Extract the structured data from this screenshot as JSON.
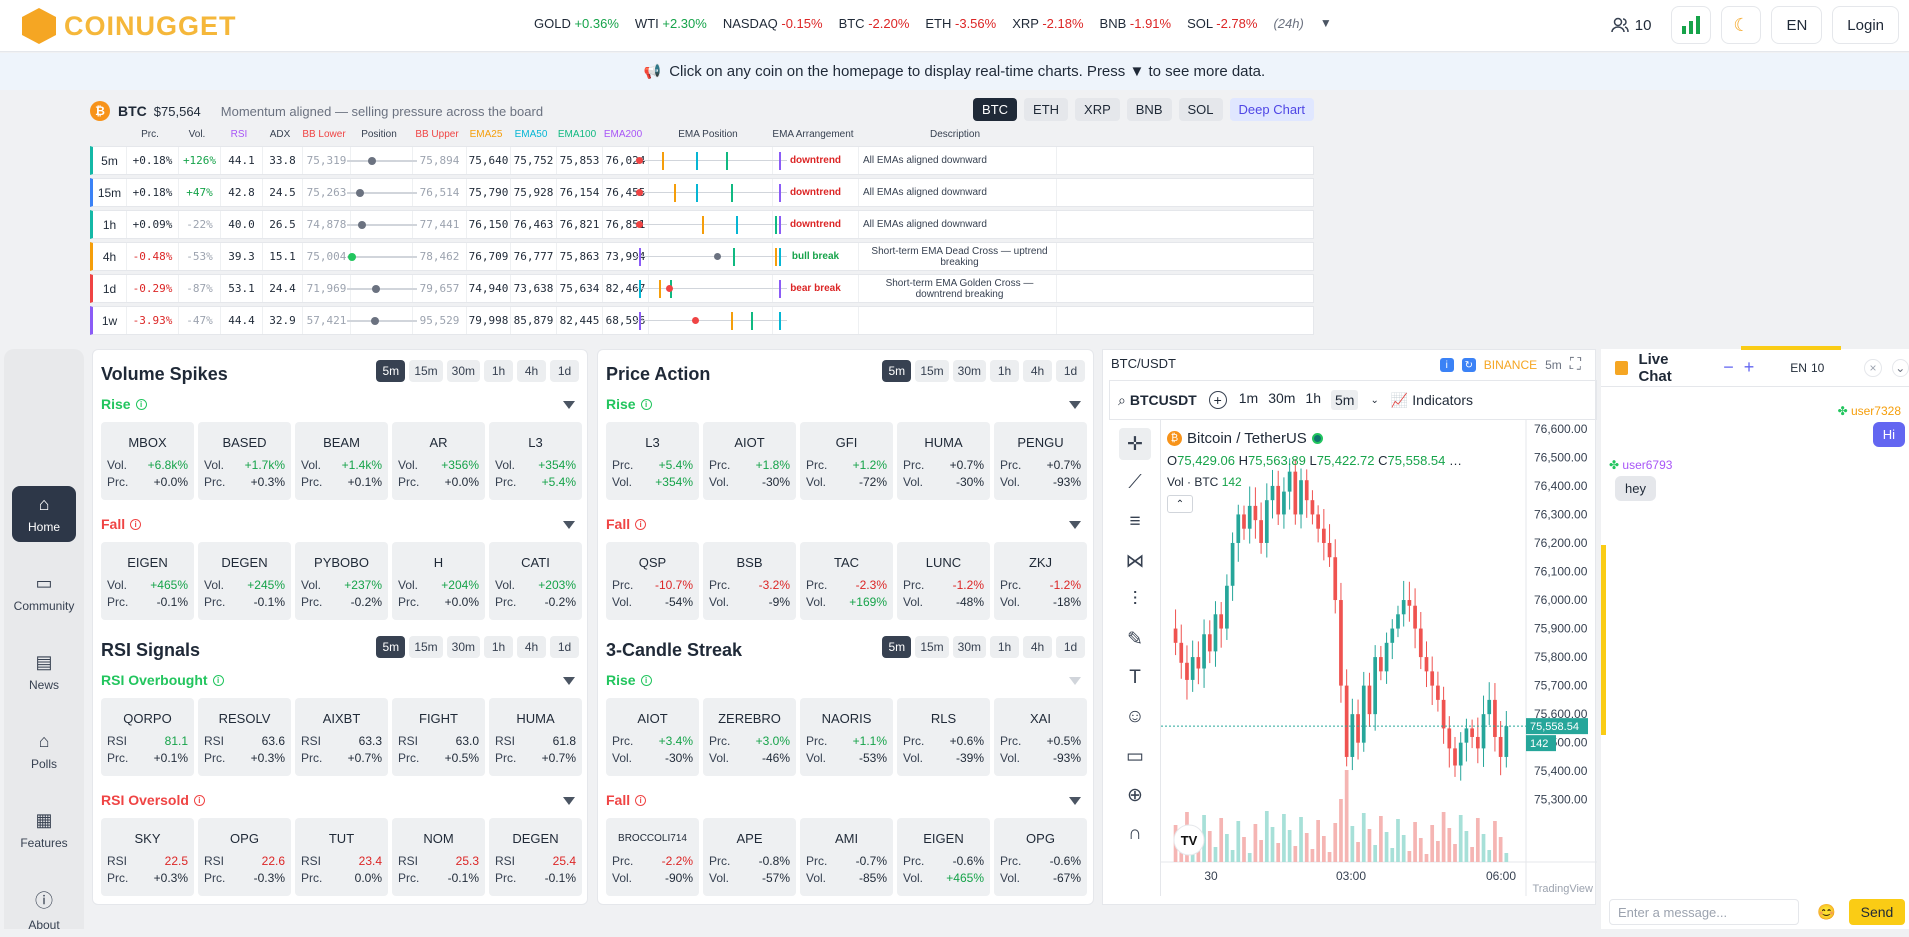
{
  "brand": {
    "name": "COINUGGET"
  },
  "ticker": [
    {
      "sym": "GOLD",
      "chg": "+0.36%",
      "dir": "pos"
    },
    {
      "sym": "WTI",
      "chg": "+2.30%",
      "dir": "pos"
    },
    {
      "sym": "NASDAQ",
      "chg": "-0.15%",
      "dir": "neg"
    },
    {
      "sym": "BTC",
      "chg": "-2.20%",
      "dir": "neg"
    },
    {
      "sym": "ETH",
      "chg": "-3.56%",
      "dir": "neg"
    },
    {
      "sym": "XRP",
      "chg": "-2.18%",
      "dir": "neg"
    },
    {
      "sym": "BNB",
      "chg": "-1.91%",
      "dir": "neg"
    },
    {
      "sym": "SOL",
      "chg": "-2.78%",
      "dir": "neg"
    }
  ],
  "ticker_period": "(24h)",
  "nav": {
    "users": "10",
    "lang": "EN",
    "login": "Login"
  },
  "banner": {
    "text": "Click on any coin on the homepage to display real-time charts. Press ▼ to see more data."
  },
  "ema": {
    "symbol": "BTC",
    "price": "$75,564",
    "message": "Momentum aligned — selling pressure across the board",
    "coins": [
      "BTC",
      "ETH",
      "XRP",
      "BNB",
      "SOL"
    ],
    "deep": "Deep Chart",
    "headers": [
      "Prc.",
      "Vol.",
      "RSI",
      "ADX",
      "BB Lower",
      "Position",
      "BB Upper",
      "EMA25",
      "EMA50",
      "EMA100",
      "EMA200",
      "EMA Position",
      "EMA Arrangement",
      "Description"
    ],
    "rows": [
      {
        "tf": "5m",
        "prc": "+0.18%",
        "vol": "+126%",
        "rsi": "44.1",
        "adx": "33.8",
        "bbl": "75,319",
        "pos": 0.35,
        "bbu": "75,894",
        "e25": "75,640",
        "e50": "75,752",
        "e100": "75,853",
        "e200": "76,024",
        "arr": "downtrend",
        "arrdir": "neg",
        "desc": "All EMAs aligned downward",
        "color": "#14b8a6"
      },
      {
        "tf": "15m",
        "prc": "+0.18%",
        "vol": "+47%",
        "rsi": "42.8",
        "adx": "24.5",
        "bbl": "75,263",
        "pos": 0.15,
        "bbu": "76,514",
        "e25": "75,790",
        "e50": "75,928",
        "e100": "76,154",
        "e200": "76,455",
        "arr": "downtrend",
        "arrdir": "neg",
        "desc": "All EMAs aligned downward",
        "color": "#3b82f6"
      },
      {
        "tf": "1h",
        "prc": "+0.09%",
        "vol": "-22%",
        "rsi": "40.0",
        "adx": "26.5",
        "bbl": "74,878",
        "pos": 0.18,
        "bbu": "77,441",
        "e25": "76,150",
        "e50": "76,463",
        "e100": "76,821",
        "e200": "76,851",
        "arr": "downtrend",
        "arrdir": "neg",
        "desc": "All EMAs aligned downward",
        "color": "#14b8a6"
      },
      {
        "tf": "4h",
        "prc": "-0.48%",
        "vol": "-53%",
        "rsi": "39.3",
        "adx": "15.1",
        "bbl": "75,004",
        "pos": 0.02,
        "bbu": "78,462",
        "e25": "76,709",
        "e50": "76,777",
        "e100": "75,863",
        "e200": "73,994",
        "arr": "bull break",
        "arrdir": "pos",
        "desc": "Short-term EMA Dead Cross — uptrend breaking",
        "color": "#f59e0b"
      },
      {
        "tf": "1d",
        "prc": "-0.29%",
        "vol": "-87%",
        "rsi": "53.1",
        "adx": "24.4",
        "bbl": "71,969",
        "pos": 0.41,
        "bbu": "79,657",
        "e25": "74,940",
        "e50": "73,638",
        "e100": "75,634",
        "e200": "82,467",
        "arr": "bear break",
        "arrdir": "neg",
        "desc": "Short-term EMA Golden Cross — downtrend breaking",
        "color": "#ef4444"
      },
      {
        "tf": "1w",
        "prc": "-3.93%",
        "vol": "-47%",
        "rsi": "44.4",
        "adx": "32.9",
        "bbl": "57,421",
        "pos": 0.4,
        "bbu": "95,529",
        "e25": "79,998",
        "e50": "85,879",
        "e100": "82,445",
        "e200": "68,596",
        "arr": "",
        "arrdir": "neg",
        "desc": "",
        "color": "#8b5cf6"
      }
    ]
  },
  "sidebar": [
    {
      "label": "Home",
      "icon": "home-icon"
    },
    {
      "label": "Community",
      "icon": "chat-icon"
    },
    {
      "label": "News",
      "icon": "news-icon"
    },
    {
      "label": "Polls",
      "icon": "poll-icon"
    },
    {
      "label": "Features",
      "icon": "grid-icon"
    },
    {
      "label": "About",
      "icon": "info-icon"
    }
  ],
  "timeframes": [
    "5m",
    "15m",
    "30m",
    "1h",
    "4h",
    "1d"
  ],
  "panels": {
    "volume": {
      "title": "Volume Spikes",
      "rise": "Rise",
      "fall": "Fall",
      "rise_cards": [
        {
          "name": "MBOX",
          "k1": "Vol.",
          "v1": "+6.8k%",
          "c1": "pos",
          "k2": "Prc.",
          "v2": "+0.0%",
          "c2": ""
        },
        {
          "name": "BASED",
          "k1": "Vol.",
          "v1": "+1.7k%",
          "c1": "pos",
          "k2": "Prc.",
          "v2": "+0.3%",
          "c2": ""
        },
        {
          "name": "BEAM",
          "k1": "Vol.",
          "v1": "+1.4k%",
          "c1": "pos",
          "k2": "Prc.",
          "v2": "+0.1%",
          "c2": ""
        },
        {
          "name": "AR",
          "k1": "Vol.",
          "v1": "+356%",
          "c1": "pos",
          "k2": "Prc.",
          "v2": "+0.0%",
          "c2": ""
        },
        {
          "name": "L3",
          "k1": "Vol.",
          "v1": "+354%",
          "c1": "pos",
          "k2": "Prc.",
          "v2": "+5.4%",
          "c2": "pos"
        }
      ],
      "fall_cards": [
        {
          "name": "EIGEN",
          "k1": "Vol.",
          "v1": "+465%",
          "c1": "pos",
          "k2": "Prc.",
          "v2": "-0.1%",
          "c2": ""
        },
        {
          "name": "DEGEN",
          "k1": "Vol.",
          "v1": "+245%",
          "c1": "pos",
          "k2": "Prc.",
          "v2": "-0.1%",
          "c2": ""
        },
        {
          "name": "PYBOBO",
          "k1": "Vol.",
          "v1": "+237%",
          "c1": "pos",
          "k2": "Prc.",
          "v2": "-0.2%",
          "c2": ""
        },
        {
          "name": "H",
          "k1": "Vol.",
          "v1": "+204%",
          "c1": "pos",
          "k2": "Prc.",
          "v2": "+0.0%",
          "c2": ""
        },
        {
          "name": "CATI",
          "k1": "Vol.",
          "v1": "+203%",
          "c1": "pos",
          "k2": "Prc.",
          "v2": "-0.2%",
          "c2": ""
        }
      ]
    },
    "price": {
      "title": "Price Action",
      "rise": "Rise",
      "fall": "Fall",
      "rise_cards": [
        {
          "name": "L3",
          "k1": "Prc.",
          "v1": "+5.4%",
          "c1": "pos",
          "k2": "Vol.",
          "v2": "+354%",
          "c2": "pos"
        },
        {
          "name": "AIOT",
          "k1": "Prc.",
          "v1": "+1.8%",
          "c1": "pos",
          "k2": "Vol.",
          "v2": "-30%",
          "c2": ""
        },
        {
          "name": "GFI",
          "k1": "Prc.",
          "v1": "+1.2%",
          "c1": "pos",
          "k2": "Vol.",
          "v2": "-72%",
          "c2": ""
        },
        {
          "name": "HUMA",
          "k1": "Prc.",
          "v1": "+0.7%",
          "c1": "",
          "k2": "Vol.",
          "v2": "-30%",
          "c2": ""
        },
        {
          "name": "PENGU",
          "k1": "Prc.",
          "v1": "+0.7%",
          "c1": "",
          "k2": "Vol.",
          "v2": "-93%",
          "c2": ""
        }
      ],
      "fall_cards": [
        {
          "name": "QSP",
          "k1": "Prc.",
          "v1": "-10.7%",
          "c1": "neg",
          "k2": "Vol.",
          "v2": "-54%",
          "c2": ""
        },
        {
          "name": "BSB",
          "k1": "Prc.",
          "v1": "-3.2%",
          "c1": "neg",
          "k2": "Vol.",
          "v2": "-9%",
          "c2": ""
        },
        {
          "name": "TAC",
          "k1": "Prc.",
          "v1": "-2.3%",
          "c1": "neg",
          "k2": "Vol.",
          "v2": "+169%",
          "c2": "pos"
        },
        {
          "name": "LUNC",
          "k1": "Prc.",
          "v1": "-1.2%",
          "c1": "neg",
          "k2": "Vol.",
          "v2": "-48%",
          "c2": ""
        },
        {
          "name": "ZKJ",
          "k1": "Prc.",
          "v1": "-1.2%",
          "c1": "neg",
          "k2": "Vol.",
          "v2": "-18%",
          "c2": ""
        }
      ]
    },
    "rsi": {
      "title": "RSI Signals",
      "rise": "RSI Overbought",
      "fall": "RSI Oversold",
      "rise_cards": [
        {
          "name": "QORPO",
          "k1": "RSI",
          "v1": "81.1",
          "c1": "pos",
          "k2": "Prc.",
          "v2": "+0.1%",
          "c2": ""
        },
        {
          "name": "RESOLV",
          "k1": "RSI",
          "v1": "63.6",
          "c1": "",
          "k2": "Prc.",
          "v2": "+0.3%",
          "c2": ""
        },
        {
          "name": "AIXBT",
          "k1": "RSI",
          "v1": "63.3",
          "c1": "",
          "k2": "Prc.",
          "v2": "+0.7%",
          "c2": ""
        },
        {
          "name": "FIGHT",
          "k1": "RSI",
          "v1": "63.0",
          "c1": "",
          "k2": "Prc.",
          "v2": "+0.5%",
          "c2": ""
        },
        {
          "name": "HUMA",
          "k1": "RSI",
          "v1": "61.8",
          "c1": "",
          "k2": "Prc.",
          "v2": "+0.7%",
          "c2": ""
        }
      ],
      "fall_cards": [
        {
          "name": "SKY",
          "k1": "RSI",
          "v1": "22.5",
          "c1": "neg",
          "k2": "Prc.",
          "v2": "+0.3%",
          "c2": ""
        },
        {
          "name": "OPG",
          "k1": "RSI",
          "v1": "22.6",
          "c1": "neg",
          "k2": "Prc.",
          "v2": "-0.3%",
          "c2": ""
        },
        {
          "name": "TUT",
          "k1": "RSI",
          "v1": "23.4",
          "c1": "neg",
          "k2": "Prc.",
          "v2": "0.0%",
          "c2": ""
        },
        {
          "name": "NOM",
          "k1": "RSI",
          "v1": "25.3",
          "c1": "neg",
          "k2": "Prc.",
          "v2": "-0.1%",
          "c2": ""
        },
        {
          "name": "DEGEN",
          "k1": "RSI",
          "v1": "25.4",
          "c1": "neg",
          "k2": "Prc.",
          "v2": "-0.1%",
          "c2": ""
        }
      ]
    },
    "streak": {
      "title": "3-Candle Streak",
      "rise": "Rise",
      "fall": "Fall",
      "rise_cards": [
        {
          "name": "AIOT",
          "k1": "Prc.",
          "v1": "+3.4%",
          "c1": "pos",
          "k2": "Vol.",
          "v2": "-30%",
          "c2": ""
        },
        {
          "name": "ZEREBRO",
          "k1": "Prc.",
          "v1": "+3.0%",
          "c1": "pos",
          "k2": "Vol.",
          "v2": "-46%",
          "c2": ""
        },
        {
          "name": "NAORIS",
          "k1": "Prc.",
          "v1": "+1.1%",
          "c1": "pos",
          "k2": "Vol.",
          "v2": "-53%",
          "c2": ""
        },
        {
          "name": "RLS",
          "k1": "Prc.",
          "v1": "+0.6%",
          "c1": "",
          "k2": "Vol.",
          "v2": "-39%",
          "c2": ""
        },
        {
          "name": "XAI",
          "k1": "Prc.",
          "v1": "+0.5%",
          "c1": "",
          "k2": "Vol.",
          "v2": "-93%",
          "c2": ""
        }
      ],
      "fall_cards": [
        {
          "name": "BROCCOLI714",
          "k1": "Prc.",
          "v1": "-2.2%",
          "c1": "neg",
          "k2": "Vol.",
          "v2": "-90%",
          "c2": ""
        },
        {
          "name": "APE",
          "k1": "Prc.",
          "v1": "-0.8%",
          "c1": "",
          "k2": "Vol.",
          "v2": "-57%",
          "c2": ""
        },
        {
          "name": "AMI",
          "k1": "Prc.",
          "v1": "-0.7%",
          "c1": "",
          "k2": "Vol.",
          "v2": "-85%",
          "c2": ""
        },
        {
          "name": "EIGEN",
          "k1": "Prc.",
          "v1": "-0.6%",
          "c1": "",
          "k2": "Vol.",
          "v2": "+465%",
          "c2": "pos"
        },
        {
          "name": "OPG",
          "k1": "Prc.",
          "v1": "-0.6%",
          "c1": "",
          "k2": "Vol.",
          "v2": "-67%",
          "c2": ""
        }
      ]
    }
  },
  "chart": {
    "pair": "BTC/USDT",
    "exchange": "BINANCE",
    "interval": "5m",
    "symbol": "BTCUSDT",
    "intervals": [
      "1m",
      "30m",
      "1h",
      "5m"
    ],
    "indicators": "Indicators",
    "title": "Bitcoin / TetherUS",
    "ohlc": {
      "o": "75,429.06",
      "h": "75,563.89",
      "l": "75,422.72",
      "c": "75,558.54"
    },
    "vol_label": "Vol · BTC",
    "vol_value": "142",
    "last": "75,558.54",
    "last_vol": "142",
    "price_ticks": [
      "76,600.00",
      "76,500.00",
      "76,400.00",
      "76,300.00",
      "76,200.00",
      "76,100.00",
      "76,000.00",
      "75,900.00",
      "75,800.00",
      "75,700.00",
      "75,600.00",
      "75,500.00",
      "75,400.00",
      "75,300.00"
    ],
    "time_ticks": [
      "30",
      "03:00",
      "06:00"
    ],
    "watermark": "TradingView",
    "logo": "TV"
  },
  "chat": {
    "title": "Live Chat",
    "lang": "EN",
    "count": "10",
    "messages": [
      {
        "user": "user7328",
        "text": "Hi",
        "side": "right"
      },
      {
        "user": "user6793",
        "text": "hey",
        "side": "left"
      }
    ],
    "placeholder": "Enter a message...",
    "send": "Send"
  },
  "colors": {
    "accent": "#f5a623",
    "up": "#16a34a",
    "down": "#dc2626",
    "candle_up": "#26a69a",
    "candle_down": "#ef5350"
  }
}
